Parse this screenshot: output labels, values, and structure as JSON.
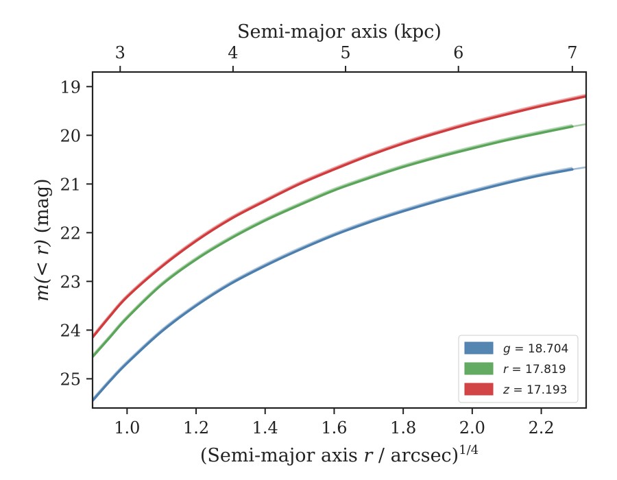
{
  "chart_data": {
    "type": "line",
    "xlabel": "(Semi-major axis r / arcsec)^{1/4}",
    "xlabel_parts": {
      "pre": "(Semi-major axis ",
      "var": "r",
      "mid": " / arcsec)",
      "sup": "1/4"
    },
    "ylabel": "m(< r) (mag)",
    "ylabel_parts": {
      "var": "m(< r)",
      "rest": " (mag)"
    },
    "top_xlabel": "Semi-major axis (kpc)",
    "xlim": [
      0.9,
      2.33
    ],
    "ylim": [
      25.6,
      18.7
    ],
    "y_inverted": true,
    "xticks": [
      1.0,
      1.2,
      1.4,
      1.6,
      1.8,
      2.0,
      2.2
    ],
    "xtick_labels": [
      "1.0",
      "1.2",
      "1.4",
      "1.6",
      "1.8",
      "2.0",
      "2.2"
    ],
    "yticks": [
      19,
      20,
      21,
      22,
      23,
      24,
      25
    ],
    "ytick_labels": [
      "19",
      "20",
      "21",
      "22",
      "23",
      "24",
      "25"
    ],
    "top_ticks": [
      {
        "label": "3",
        "x": 0.98
      },
      {
        "label": "4",
        "x": 1.307
      },
      {
        "label": "5",
        "x": 1.633
      },
      {
        "label": "6",
        "x": 1.96
      },
      {
        "label": "7",
        "x": 2.29
      }
    ],
    "grid": false,
    "legend_position": "lower-right",
    "series": [
      {
        "name": "g = 18.704",
        "legend_var": "g",
        "legend_value": "= 18.704",
        "color": "#4c7fae",
        "x": [
          0.9,
          0.95,
          1.0,
          1.1,
          1.2,
          1.3,
          1.4,
          1.5,
          1.6,
          1.7,
          1.8,
          1.9,
          2.0,
          2.1,
          2.2,
          2.29
        ],
        "y": [
          25.45,
          25.05,
          24.68,
          24.03,
          23.5,
          23.05,
          22.68,
          22.35,
          22.05,
          21.79,
          21.56,
          21.35,
          21.16,
          20.98,
          20.82,
          20.7
        ]
      },
      {
        "name": "r = 17.819",
        "legend_var": "r",
        "legend_value": "= 17.819",
        "color": "#5ba55a",
        "x": [
          0.9,
          0.95,
          1.0,
          1.1,
          1.2,
          1.3,
          1.4,
          1.5,
          1.6,
          1.7,
          1.8,
          1.9,
          2.0,
          2.1,
          2.2,
          2.29
        ],
        "y": [
          24.55,
          24.15,
          23.75,
          23.07,
          22.55,
          22.12,
          21.75,
          21.43,
          21.13,
          20.88,
          20.65,
          20.45,
          20.27,
          20.1,
          19.95,
          19.82
        ]
      },
      {
        "name": "z = 17.193",
        "legend_var": "z",
        "legend_value": "= 17.193",
        "color": "#d03b3d",
        "x": [
          0.9,
          0.95,
          1.0,
          1.1,
          1.2,
          1.3,
          1.4,
          1.5,
          1.6,
          1.7,
          1.8,
          1.9,
          2.0,
          2.1,
          2.2,
          2.33
        ],
        "y": [
          24.15,
          23.72,
          23.32,
          22.7,
          22.17,
          21.72,
          21.35,
          21.0,
          20.7,
          20.42,
          20.17,
          19.95,
          19.75,
          19.57,
          19.4,
          19.2
        ]
      }
    ]
  }
}
